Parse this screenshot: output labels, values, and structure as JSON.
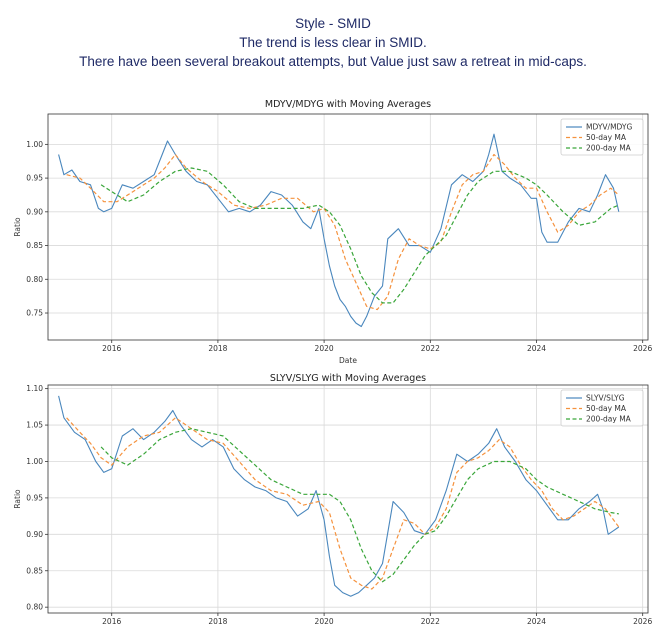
{
  "header": {
    "line1": "Style - SMID",
    "line2": "The trend is less clear in SMID.",
    "line3": "There have been several breakout attempts, but Value just saw a retreat in mid-caps."
  },
  "colors": {
    "ratio": "#4a87bd",
    "ma50": "#f5923e",
    "ma200": "#3aa63a",
    "grid": "#d9d9d9",
    "header": "#1f2a66"
  },
  "chart_data": [
    {
      "type": "line",
      "title": "MDYV/MDYG with Moving Averages",
      "xlabel": "Date",
      "ylabel": "Ratio",
      "xlim": [
        2014.8,
        2026.1
      ],
      "ylim": [
        0.71,
        1.045
      ],
      "xticks": [
        2016,
        2018,
        2020,
        2022,
        2024,
        2026
      ],
      "xtick_labels": [
        "2016",
        "2018",
        "2020",
        "2022",
        "2024",
        "2026"
      ],
      "yticks": [
        0.75,
        0.8,
        0.85,
        0.9,
        0.95,
        1.0
      ],
      "ytick_labels": [
        "0.75",
        "0.80",
        "0.85",
        "0.90",
        "0.95",
        "1.00"
      ],
      "grid": true,
      "legend_position": "top-right",
      "legend": [
        "MDYV/MDYG",
        "50-day MA",
        "200-day MA"
      ],
      "series": [
        {
          "name": "MDYV/MDYG",
          "style": "solid",
          "x": [
            2015.0,
            2015.1,
            2015.25,
            2015.4,
            2015.6,
            2015.75,
            2015.85,
            2016.0,
            2016.2,
            2016.4,
            2016.6,
            2016.8,
            2016.95,
            2017.05,
            2017.2,
            2017.4,
            2017.6,
            2017.8,
            2018.0,
            2018.2,
            2018.4,
            2018.6,
            2018.8,
            2019.0,
            2019.2,
            2019.4,
            2019.6,
            2019.75,
            2019.9,
            2020.0,
            2020.1,
            2020.2,
            2020.3,
            2020.4,
            2020.5,
            2020.6,
            2020.7,
            2020.8,
            2020.95,
            2021.1,
            2021.2,
            2021.4,
            2021.6,
            2021.8,
            2022.0,
            2022.2,
            2022.4,
            2022.6,
            2022.8,
            2023.0,
            2023.1,
            2023.2,
            2023.35,
            2023.5,
            2023.7,
            2023.9,
            2024.0,
            2024.1,
            2024.2,
            2024.4,
            2024.6,
            2024.8,
            2025.0,
            2025.15,
            2025.3,
            2025.45,
            2025.55
          ],
          "values": [
            0.985,
            0.955,
            0.962,
            0.945,
            0.94,
            0.905,
            0.9,
            0.905,
            0.94,
            0.935,
            0.945,
            0.955,
            0.985,
            1.005,
            0.985,
            0.96,
            0.945,
            0.94,
            0.92,
            0.9,
            0.905,
            0.9,
            0.91,
            0.93,
            0.925,
            0.91,
            0.885,
            0.875,
            0.905,
            0.86,
            0.82,
            0.79,
            0.77,
            0.76,
            0.745,
            0.735,
            0.73,
            0.745,
            0.775,
            0.79,
            0.86,
            0.875,
            0.85,
            0.85,
            0.84,
            0.875,
            0.94,
            0.955,
            0.945,
            0.96,
            0.985,
            1.015,
            0.96,
            0.95,
            0.94,
            0.92,
            0.92,
            0.87,
            0.855,
            0.855,
            0.885,
            0.905,
            0.9,
            0.925,
            0.955,
            0.935,
            0.9
          ]
        },
        {
          "name": "50-day MA",
          "style": "dashed",
          "x": [
            2015.15,
            2015.4,
            2015.6,
            2015.85,
            2016.1,
            2016.4,
            2016.6,
            2016.8,
            2017.0,
            2017.2,
            2017.4,
            2017.7,
            2018.0,
            2018.3,
            2018.6,
            2018.9,
            2019.2,
            2019.5,
            2019.8,
            2020.0,
            2020.2,
            2020.4,
            2020.6,
            2020.8,
            2021.0,
            2021.2,
            2021.4,
            2021.6,
            2021.8,
            2022.0,
            2022.2,
            2022.4,
            2022.6,
            2022.8,
            2023.0,
            2023.2,
            2023.4,
            2023.6,
            2023.8,
            2024.0,
            2024.2,
            2024.4,
            2024.6,
            2024.8,
            2025.0,
            2025.2,
            2025.4,
            2025.55
          ],
          "values": [
            0.955,
            0.95,
            0.935,
            0.915,
            0.915,
            0.93,
            0.94,
            0.95,
            0.965,
            0.985,
            0.965,
            0.945,
            0.93,
            0.91,
            0.905,
            0.91,
            0.92,
            0.92,
            0.9,
            0.905,
            0.88,
            0.83,
            0.795,
            0.76,
            0.755,
            0.775,
            0.83,
            0.86,
            0.85,
            0.845,
            0.855,
            0.9,
            0.94,
            0.955,
            0.96,
            0.985,
            0.97,
            0.95,
            0.935,
            0.935,
            0.9,
            0.87,
            0.88,
            0.9,
            0.91,
            0.925,
            0.935,
            0.925
          ]
        },
        {
          "name": "200-day MA",
          "style": "dashed",
          "x": [
            2015.8,
            2016.0,
            2016.3,
            2016.6,
            2016.9,
            2017.2,
            2017.5,
            2017.8,
            2018.1,
            2018.4,
            2018.7,
            2019.0,
            2019.3,
            2019.6,
            2019.9,
            2020.1,
            2020.3,
            2020.5,
            2020.7,
            2020.9,
            2021.1,
            2021.3,
            2021.5,
            2021.7,
            2021.9,
            2022.1,
            2022.3,
            2022.5,
            2022.7,
            2022.9,
            2023.2,
            2023.5,
            2023.8,
            2024.0,
            2024.2,
            2024.5,
            2024.8,
            2025.1,
            2025.4,
            2025.55
          ],
          "values": [
            0.94,
            0.93,
            0.915,
            0.925,
            0.945,
            0.96,
            0.965,
            0.96,
            0.94,
            0.915,
            0.905,
            0.905,
            0.905,
            0.905,
            0.91,
            0.9,
            0.88,
            0.845,
            0.805,
            0.78,
            0.765,
            0.765,
            0.785,
            0.81,
            0.835,
            0.85,
            0.865,
            0.895,
            0.925,
            0.945,
            0.96,
            0.96,
            0.95,
            0.94,
            0.925,
            0.9,
            0.88,
            0.885,
            0.905,
            0.91
          ]
        }
      ]
    },
    {
      "type": "line",
      "title": "SLYV/SLYG with Moving Averages",
      "xlabel": "",
      "ylabel": "Ratio",
      "xlim": [
        2014.8,
        2026.1
      ],
      "ylim": [
        0.792,
        1.105
      ],
      "xticks": [
        2016,
        2018,
        2020,
        2022,
        2024,
        2026
      ],
      "xtick_labels": [
        "2016",
        "2018",
        "2020",
        "2022",
        "2024",
        "2026"
      ],
      "yticks": [
        0.8,
        0.85,
        0.9,
        0.95,
        1.0,
        1.05,
        1.1
      ],
      "ytick_labels": [
        "0.80",
        "0.85",
        "0.90",
        "0.95",
        "1.00",
        "1.05",
        "1.10"
      ],
      "grid": true,
      "legend_position": "top-right",
      "legend": [
        "SLYV/SLYG",
        "50-day MA",
        "200-day MA"
      ],
      "series": [
        {
          "name": "SLYV/SLYG",
          "style": "solid",
          "x": [
            2015.0,
            2015.1,
            2015.3,
            2015.5,
            2015.7,
            2015.85,
            2016.0,
            2016.2,
            2016.4,
            2016.6,
            2016.8,
            2017.0,
            2017.15,
            2017.3,
            2017.5,
            2017.7,
            2017.9,
            2018.1,
            2018.3,
            2018.5,
            2018.7,
            2018.9,
            2019.1,
            2019.3,
            2019.5,
            2019.7,
            2019.85,
            2020.0,
            2020.1,
            2020.2,
            2020.35,
            2020.5,
            2020.65,
            2020.8,
            2020.95,
            2021.1,
            2021.3,
            2021.5,
            2021.7,
            2021.9,
            2022.1,
            2022.3,
            2022.5,
            2022.7,
            2022.9,
            2023.1,
            2023.25,
            2023.4,
            2023.6,
            2023.8,
            2024.0,
            2024.2,
            2024.4,
            2024.6,
            2024.8,
            2025.0,
            2025.15,
            2025.25,
            2025.35,
            2025.45,
            2025.55
          ],
          "values": [
            1.09,
            1.06,
            1.04,
            1.03,
            1.0,
            0.985,
            0.99,
            1.035,
            1.045,
            1.03,
            1.04,
            1.055,
            1.07,
            1.05,
            1.03,
            1.02,
            1.03,
            1.02,
            0.99,
            0.975,
            0.965,
            0.96,
            0.95,
            0.945,
            0.925,
            0.935,
            0.96,
            0.92,
            0.87,
            0.83,
            0.82,
            0.815,
            0.82,
            0.83,
            0.84,
            0.86,
            0.945,
            0.93,
            0.905,
            0.9,
            0.92,
            0.96,
            1.01,
            1.0,
            1.01,
            1.025,
            1.045,
            1.02,
            1.0,
            0.975,
            0.96,
            0.94,
            0.92,
            0.92,
            0.935,
            0.945,
            0.955,
            0.935,
            0.9,
            0.905,
            0.91
          ]
        },
        {
          "name": "50-day MA",
          "style": "dashed",
          "x": [
            2015.15,
            2015.4,
            2015.6,
            2015.8,
            2016.0,
            2016.3,
            2016.6,
            2016.9,
            2017.2,
            2017.5,
            2017.8,
            2018.1,
            2018.4,
            2018.7,
            2019.0,
            2019.3,
            2019.6,
            2019.9,
            2020.1,
            2020.3,
            2020.5,
            2020.7,
            2020.9,
            2021.1,
            2021.3,
            2021.5,
            2021.7,
            2021.9,
            2022.1,
            2022.3,
            2022.5,
            2022.7,
            2022.9,
            2023.1,
            2023.3,
            2023.5,
            2023.7,
            2023.9,
            2024.1,
            2024.3,
            2024.5,
            2024.7,
            2024.9,
            2025.1,
            2025.3,
            2025.5,
            2025.55
          ],
          "values": [
            1.06,
            1.04,
            1.025,
            1.005,
            0.995,
            1.02,
            1.035,
            1.04,
            1.06,
            1.045,
            1.03,
            1.025,
            1.0,
            0.975,
            0.96,
            0.955,
            0.94,
            0.945,
            0.93,
            0.88,
            0.84,
            0.83,
            0.825,
            0.84,
            0.88,
            0.92,
            0.915,
            0.9,
            0.91,
            0.935,
            0.985,
            1.0,
            1.005,
            1.015,
            1.03,
            1.02,
            0.995,
            0.975,
            0.96,
            0.935,
            0.92,
            0.925,
            0.935,
            0.945,
            0.935,
            0.915,
            0.91
          ]
        },
        {
          "name": "200-day MA",
          "style": "dashed",
          "x": [
            2015.8,
            2016.0,
            2016.3,
            2016.6,
            2016.9,
            2017.2,
            2017.5,
            2017.8,
            2018.1,
            2018.4,
            2018.7,
            2019.0,
            2019.3,
            2019.6,
            2019.9,
            2020.1,
            2020.3,
            2020.5,
            2020.7,
            2020.9,
            2021.1,
            2021.3,
            2021.5,
            2021.7,
            2021.9,
            2022.1,
            2022.3,
            2022.5,
            2022.7,
            2022.9,
            2023.2,
            2023.5,
            2023.8,
            2024.0,
            2024.2,
            2024.5,
            2024.8,
            2025.1,
            2025.4,
            2025.55
          ],
          "values": [
            1.02,
            1.005,
            0.995,
            1.01,
            1.03,
            1.04,
            1.045,
            1.04,
            1.035,
            1.015,
            0.995,
            0.975,
            0.965,
            0.955,
            0.955,
            0.955,
            0.945,
            0.92,
            0.88,
            0.85,
            0.835,
            0.845,
            0.865,
            0.885,
            0.9,
            0.905,
            0.925,
            0.95,
            0.975,
            0.99,
            1.0,
            1.0,
            0.99,
            0.975,
            0.965,
            0.955,
            0.945,
            0.935,
            0.93,
            0.928
          ]
        }
      ]
    }
  ]
}
